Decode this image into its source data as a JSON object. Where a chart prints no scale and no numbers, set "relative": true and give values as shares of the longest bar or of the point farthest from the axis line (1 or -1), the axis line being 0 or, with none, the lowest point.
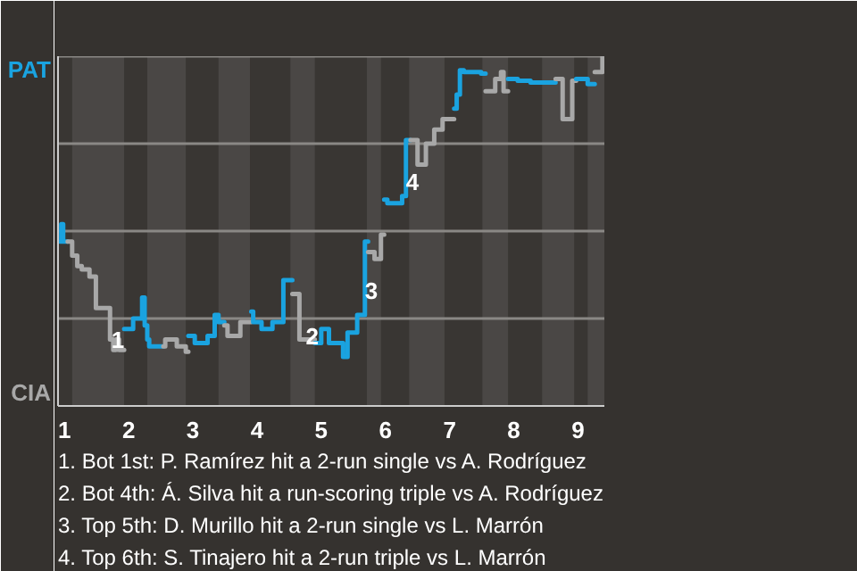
{
  "chart_data": {
    "type": "step",
    "relative": true,
    "xlim": [
      0.9,
      9.41
    ],
    "xticks": [
      1,
      2,
      3,
      4,
      5,
      6,
      7,
      8,
      9
    ],
    "series": [
      {
        "color": "#1aa3e0",
        "x": [
          0.93,
          0.95,
          0.98,
          1.05
        ],
        "values": [
          0.47,
          0.52,
          0.47,
          0.47
        ]
      },
      {
        "color": "#a8a8a8",
        "x": [
          1.05,
          1.12,
          1.2,
          1.27,
          1.39,
          1.49,
          1.71,
          1.76,
          1.8,
          1.85,
          1.93
        ],
        "values": [
          0.47,
          0.43,
          0.4,
          0.39,
          0.37,
          0.28,
          0.19,
          0.16,
          0.19,
          0.16,
          0.16
        ]
      },
      {
        "color": "#1aa3e0",
        "x": [
          1.93,
          2.07,
          2.21,
          2.25,
          2.29,
          2.32,
          2.54
        ],
        "values": [
          0.22,
          0.25,
          0.31,
          0.23,
          0.19,
          0.17,
          0.17
        ]
      },
      {
        "color": "#a8a8a8",
        "x": [
          2.54,
          2.57,
          2.75,
          2.89,
          2.93
        ],
        "values": [
          0.17,
          0.19,
          0.17,
          0.155,
          0.155
        ]
      },
      {
        "color": "#1aa3e0",
        "x": [
          2.93,
          3.03,
          3.23,
          3.34,
          3.4,
          3.49
        ],
        "values": [
          0.2,
          0.18,
          0.2,
          0.26,
          0.24,
          0.24
        ]
      },
      {
        "color": "#a8a8a8",
        "x": [
          3.49,
          3.54,
          3.74,
          3.91
        ],
        "values": [
          0.23,
          0.2,
          0.24,
          0.24
        ]
      },
      {
        "color": "#1aa3e0",
        "x": [
          3.91,
          3.94,
          4.07,
          4.24,
          4.41,
          4.55
        ],
        "values": [
          0.27,
          0.24,
          0.22,
          0.24,
          0.36,
          0.36
        ]
      },
      {
        "color": "#a8a8a8",
        "x": [
          4.55,
          4.66,
          4.79,
          4.9
        ],
        "values": [
          0.32,
          0.19,
          0.19,
          0.19
        ]
      },
      {
        "color": "#1aa3e0",
        "x": [
          4.9,
          5.0,
          5.12,
          5.34,
          5.41,
          5.56,
          5.68,
          5.73
        ],
        "values": [
          0.18,
          0.22,
          0.18,
          0.14,
          0.21,
          0.26,
          0.47,
          0.47
        ]
      },
      {
        "color": "#a8a8a8",
        "x": [
          5.73,
          5.83,
          5.93,
          5.98
        ],
        "values": [
          0.44,
          0.42,
          0.49,
          0.49
        ]
      },
      {
        "color": "#1aa3e0",
        "x": [
          5.98,
          6.03,
          6.26,
          6.32,
          6.39
        ],
        "values": [
          0.59,
          0.58,
          0.6,
          0.76,
          0.76
        ]
      },
      {
        "color": "#a8a8a8",
        "x": [
          6.39,
          6.5,
          6.63,
          6.76,
          6.89,
          7.07
        ],
        "values": [
          0.76,
          0.69,
          0.75,
          0.79,
          0.82,
          0.82
        ]
      },
      {
        "color": "#1aa3e0",
        "x": [
          7.07,
          7.11,
          7.16,
          7.22,
          7.49,
          7.56
        ],
        "values": [
          0.85,
          0.89,
          0.96,
          0.955,
          0.95,
          0.95
        ]
      },
      {
        "color": "#a8a8a8",
        "x": [
          7.56,
          7.71,
          7.8,
          7.84,
          7.91
        ],
        "values": [
          0.9,
          0.935,
          0.955,
          0.9,
          0.9
        ]
      },
      {
        "color": "#1aa3e0",
        "x": [
          7.91,
          8.06,
          8.26,
          8.65
        ],
        "values": [
          0.935,
          0.93,
          0.925,
          0.925
        ]
      },
      {
        "color": "#a8a8a8",
        "x": [
          8.65,
          8.76,
          8.91,
          8.97
        ],
        "values": [
          0.935,
          0.82,
          0.93,
          0.93
        ]
      },
      {
        "color": "#1aa3e0",
        "x": [
          8.97,
          9.15,
          9.26
        ],
        "values": [
          0.935,
          0.92,
          0.92
        ]
      },
      {
        "color": "#a8a8a8",
        "x": [
          9.26,
          9.38,
          9.41
        ],
        "values": [
          0.955,
          1.0,
          1.0
        ]
      }
    ],
    "bands": [
      {
        "axis": "x",
        "from": 1.12,
        "to": 1.93,
        "color": "#4a4745"
      },
      {
        "axis": "x",
        "from": 2.29,
        "to": 2.89,
        "color": "#4a4745"
      },
      {
        "axis": "x",
        "from": 3.4,
        "to": 3.89,
        "color": "#4a4745"
      },
      {
        "axis": "x",
        "from": 4.52,
        "to": 4.9,
        "color": "#4a4745"
      },
      {
        "axis": "x",
        "from": 5.71,
        "to": 5.93,
        "color": "#4a4745"
      },
      {
        "axis": "x",
        "from": 6.37,
        "to": 6.92,
        "color": "#4a4745"
      },
      {
        "axis": "x",
        "from": 7.51,
        "to": 7.91,
        "color": "#4a4745"
      },
      {
        "axis": "x",
        "from": 8.44,
        "to": 8.94,
        "color": "#4a4745"
      },
      {
        "axis": "x",
        "from": 9.15,
        "to": 9.41,
        "color": "#4a4745"
      }
    ],
    "ref_lines": [
      {
        "axis": "y",
        "value": 0.25,
        "color": "#8a8885"
      },
      {
        "axis": "y",
        "value": 0.5,
        "color": "#8a8885"
      },
      {
        "axis": "y",
        "value": 0.75,
        "color": "#8a8885"
      },
      {
        "axis": "y",
        "value": 1,
        "color": "#8a8885"
      }
    ],
    "annotations": [
      "PAT",
      "CIA",
      {
        "text": "1",
        "x": 1.83,
        "y": 0.19
      },
      {
        "text": "2",
        "x": 4.86,
        "y": 0.2
      },
      {
        "text": "3",
        "x": 5.78,
        "y": 0.33
      },
      {
        "text": "4",
        "x": 6.42,
        "y": 0.64
      },
      "1. Bot 1st: P. Ramírez hit a 2-run single vs A. Rodríguez",
      "2. Bot 4th: Á. Silva hit a run-scoring triple vs A. Rodríguez",
      "3. Top 5th: D. Murillo hit a 2-run single vs L. Marrón",
      "4. Top 6th: S. Tinajero hit a 2-run triple vs L. Marrón"
    ]
  }
}
